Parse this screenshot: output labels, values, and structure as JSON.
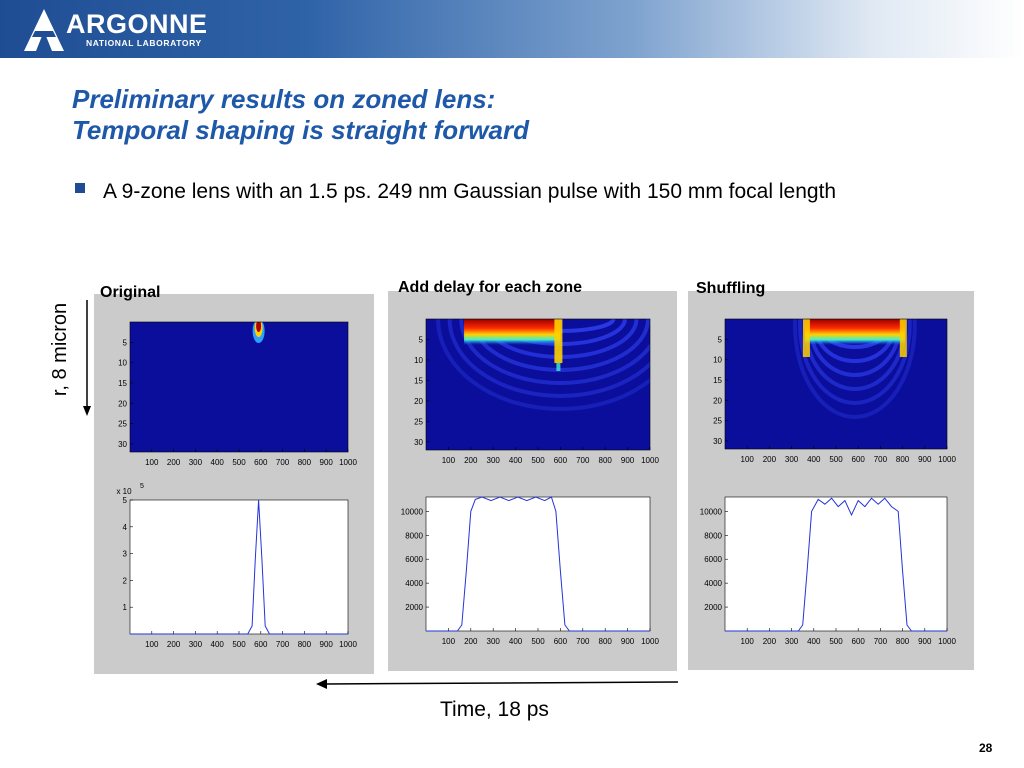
{
  "header": {
    "logo_text": "ARGONNE",
    "logo_subtext": "NATIONAL LABORATORY"
  },
  "slide": {
    "title_line1": "Preliminary results on zoned lens:",
    "title_line2": "Temporal shaping is straight forward",
    "bullet": "A 9-zone lens with an 1.5 ps. 249 nm Gaussian pulse with 150 mm focal length",
    "panel_labels": [
      "Original",
      "Add delay for each zone",
      "Shuffling"
    ],
    "y_axis_label": "r, 8 micron",
    "x_axis_label": "Time, 18 ps",
    "page_number": "28"
  },
  "colors": {
    "title": "#1e58a8",
    "header_dark": "#1f4d93",
    "panel_bg": "#cbcbcb",
    "heatmap_bg": "#0b0e9a",
    "line": "#2434d8"
  },
  "chart_data": [
    {
      "type": "heatmap",
      "x_ticks": [
        "100",
        "200",
        "300",
        "400",
        "500",
        "600",
        "700",
        "800",
        "900",
        "1000"
      ],
      "y_ticks": [
        "5",
        "10",
        "15",
        "20",
        "25",
        "30"
      ],
      "xlim": [
        0,
        1000
      ],
      "ylim": [
        0,
        32
      ],
      "pattern": "single",
      "center": 590
    },
    {
      "type": "line",
      "x_ticks": [
        "100",
        "200",
        "300",
        "400",
        "500",
        "600",
        "700",
        "800",
        "900",
        "1000"
      ],
      "y_ticks": [
        "1",
        "2",
        "3",
        "4",
        "5"
      ],
      "y_exponent": "x 10",
      "y_exponent_power": "5",
      "xlim": [
        0,
        1000
      ],
      "ylim": [
        0,
        5
      ],
      "series": [
        {
          "x": [
            0,
            540,
            560,
            575,
            590,
            605,
            620,
            640,
            1000
          ],
          "y": [
            0,
            0,
            0.3,
            2.8,
            5,
            2.8,
            0.3,
            0,
            0
          ]
        }
      ]
    },
    {
      "type": "heatmap",
      "x_ticks": [
        "100",
        "200",
        "300",
        "400",
        "500",
        "600",
        "700",
        "800",
        "900",
        "1000"
      ],
      "y_ticks": [
        "5",
        "10",
        "15",
        "20",
        "25",
        "30"
      ],
      "xlim": [
        0,
        1000
      ],
      "ylim": [
        0,
        32
      ],
      "pattern": "delay",
      "start": 170,
      "end": 600
    },
    {
      "type": "line",
      "x_ticks": [
        "100",
        "200",
        "300",
        "400",
        "500",
        "600",
        "700",
        "800",
        "900",
        "1000"
      ],
      "y_ticks": [
        "2000",
        "4000",
        "6000",
        "8000",
        "10000"
      ],
      "xlim": [
        0,
        1000
      ],
      "ylim": [
        0,
        11200
      ],
      "series": [
        {
          "x": [
            0,
            140,
            160,
            180,
            200,
            220,
            250,
            290,
            330,
            370,
            410,
            450,
            490,
            530,
            560,
            580,
            600,
            620,
            640,
            1000
          ],
          "y": [
            0,
            0,
            500,
            5000,
            10000,
            11000,
            11200,
            10900,
            11200,
            10900,
            11200,
            10900,
            11200,
            10900,
            11200,
            10000,
            5000,
            500,
            0,
            0
          ]
        }
      ]
    },
    {
      "type": "heatmap",
      "x_ticks": [
        "100",
        "200",
        "300",
        "400",
        "500",
        "600",
        "700",
        "800",
        "900",
        "1000"
      ],
      "y_ticks": [
        "5",
        "10",
        "15",
        "20",
        "25",
        "30"
      ],
      "xlim": [
        0,
        1000
      ],
      "ylim": [
        0,
        32
      ],
      "pattern": "shuffle",
      "start": 360,
      "end": 810
    },
    {
      "type": "line",
      "x_ticks": [
        "100",
        "200",
        "300",
        "400",
        "500",
        "600",
        "700",
        "800",
        "900",
        "1000"
      ],
      "y_ticks": [
        "2000",
        "4000",
        "6000",
        "8000",
        "10000"
      ],
      "xlim": [
        0,
        1000
      ],
      "ylim": [
        0,
        11200
      ],
      "series": [
        {
          "x": [
            0,
            330,
            350,
            370,
            390,
            420,
            450,
            480,
            510,
            540,
            570,
            600,
            630,
            660,
            690,
            720,
            750,
            780,
            800,
            820,
            840,
            1000
          ],
          "y": [
            0,
            0,
            500,
            5000,
            10000,
            11000,
            10600,
            11100,
            10400,
            10900,
            9700,
            10900,
            10400,
            11100,
            10600,
            11100,
            10400,
            10000,
            5000,
            500,
            0,
            0
          ]
        }
      ]
    }
  ]
}
